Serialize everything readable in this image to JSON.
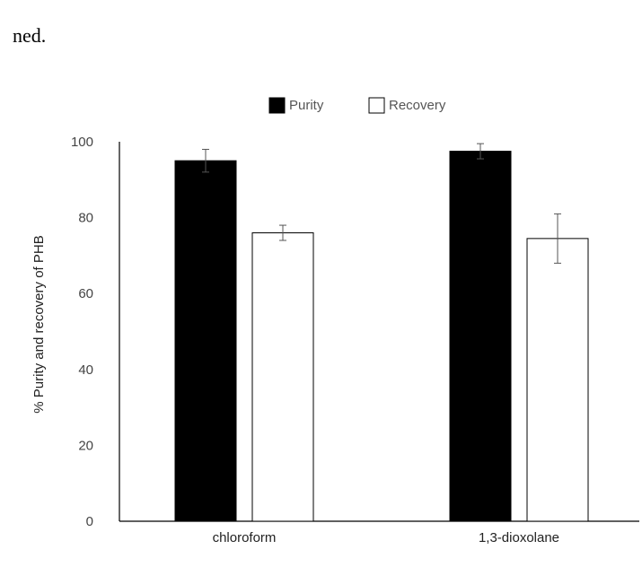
{
  "header_fragment": "ned.",
  "chart_data": {
    "type": "bar",
    "categories": [
      "chloroform",
      "1,3-dioxolane"
    ],
    "series": [
      {
        "name": "Purity",
        "values": [
          95,
          97.5
        ],
        "errors": [
          3,
          2
        ],
        "fill": "#000000"
      },
      {
        "name": "Recovery",
        "values": [
          76,
          74.5
        ],
        "errors": [
          2,
          6.5
        ],
        "fill": "#ffffff"
      }
    ],
    "ylabel": "% Purity and recovery of PHB",
    "xlabel": "",
    "ylim": [
      0,
      100
    ],
    "yticks": [
      0,
      20,
      40,
      60,
      80,
      100
    ],
    "grid": false,
    "legend_position": "top-center"
  }
}
